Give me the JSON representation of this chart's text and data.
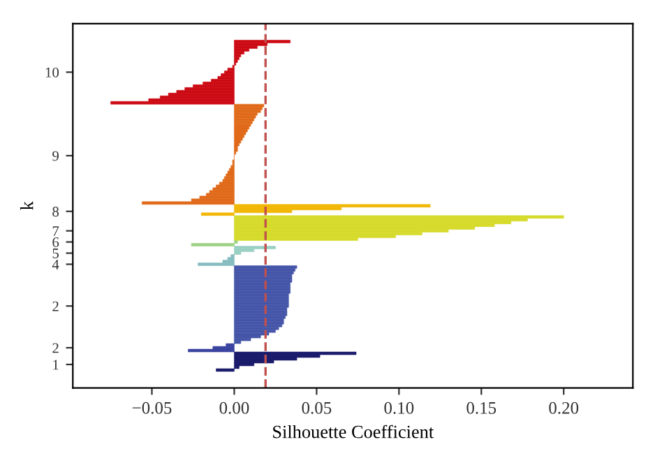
{
  "chart_data": {
    "type": "bar",
    "orientation": "horizontal",
    "xlabel": "Silhouette Coefficient",
    "ylabel": "k",
    "xlim": [
      -0.098,
      0.242
    ],
    "xticks": [
      {
        "value": -0.05,
        "label": "−0.05"
      },
      {
        "value": 0,
        "label": "0.00"
      },
      {
        "value": 0.05,
        "label": "0.05"
      },
      {
        "value": 0.1,
        "label": "0.10"
      },
      {
        "value": 0.15,
        "label": "0.15"
      },
      {
        "value": 0.2,
        "label": "0.20"
      }
    ],
    "categories": [
      null,
      null,
      null,
      null,
      null,
      null,
      null,
      null,
      null,
      null,
      null,
      "10",
      null,
      null,
      null,
      null,
      null,
      null,
      null,
      null,
      null,
      null,
      null,
      null,
      null,
      null,
      null,
      null,
      null,
      null,
      null,
      null,
      null,
      null,
      null,
      null,
      null,
      null,
      null,
      null,
      null,
      "9",
      null,
      null,
      null,
      null,
      null,
      null,
      null,
      null,
      null,
      null,
      null,
      null,
      null,
      null,
      null,
      null,
      null,
      null,
      null,
      "8",
      null,
      null,
      null,
      null,
      null,
      null,
      "7",
      null,
      null,
      null,
      "6",
      null,
      null,
      null,
      "5",
      null,
      null,
      null,
      "4",
      null,
      null,
      null,
      null,
      null,
      null,
      null,
      null,
      null,
      null,
      null,
      null,
      null,
      null,
      "2",
      null,
      null,
      null,
      null,
      null,
      null,
      null,
      null,
      null,
      null,
      null,
      null,
      null,
      null,
      "2",
      null,
      null,
      null,
      null,
      null,
      "1",
      null,
      null
    ],
    "values": [
      0.034,
      0.02,
      0.014,
      0.009,
      0.006,
      0.004,
      0.003,
      0.002,
      0.001,
      -0.001,
      -0.004,
      -0.006,
      -0.008,
      -0.01,
      -0.014,
      -0.019,
      -0.025,
      -0.03,
      -0.035,
      -0.04,
      -0.045,
      -0.052,
      -0.075,
      0.018,
      0.017,
      0.016,
      0.014,
      0.013,
      0.012,
      0.011,
      0.01,
      0.009,
      0.008,
      0.007,
      0.006,
      0.005,
      0.004,
      0.003,
      0.002,
      0.002,
      0.001,
      0,
      0,
      -0.001,
      -0.001,
      -0.002,
      -0.003,
      -0.004,
      -0.005,
      -0.006,
      -0.007,
      -0.009,
      -0.011,
      -0.013,
      -0.015,
      -0.017,
      -0.021,
      -0.026,
      -0.056,
      0.119,
      0.065,
      0.035,
      -0.02,
      0.2,
      0.178,
      0.168,
      0.158,
      0.146,
      0.13,
      0.114,
      0.098,
      0.075,
      0.002,
      -0.026,
      0.025,
      0.012,
      0.004,
      -0.002,
      -0.004,
      -0.007,
      -0.022,
      0.038,
      0.037,
      0.036,
      0.035,
      0.035,
      0.035,
      0.034,
      0.034,
      0.034,
      0.034,
      0.033,
      0.033,
      0.033,
      0.033,
      0.033,
      0.032,
      0.032,
      0.032,
      0.031,
      0.03,
      0.03,
      0.029,
      0.027,
      0.025,
      0.021,
      0.016,
      0.01,
      0.004,
      -0.005,
      -0.013,
      -0.028,
      0.074,
      0.052,
      0.038,
      0.024,
      0.012,
      0.003,
      -0.011
    ],
    "colors": [
      "#cc0a14",
      "#cc0a14",
      "#cc0a14",
      "#cc0a14",
      "#cc0a14",
      "#cc0a14",
      "#cc0a14",
      "#cc0a14",
      "#cc0a14",
      "#cc0a14",
      "#cc0a14",
      "#cc0a14",
      "#cc0a14",
      "#cc0a14",
      "#cc0a14",
      "#cc0a14",
      "#cc0a14",
      "#cc0a14",
      "#cc0a14",
      "#cc0a14",
      "#cc0a14",
      "#cc0a14",
      "#cc0a14",
      "#e06a1a",
      "#e06a1a",
      "#e06a1a",
      "#e06a1a",
      "#e06a1a",
      "#e06a1a",
      "#e06a1a",
      "#e06a1a",
      "#e06a1a",
      "#e06a1a",
      "#e06a1a",
      "#e06a1a",
      "#e06a1a",
      "#e06a1a",
      "#e06a1a",
      "#e06a1a",
      "#e06a1a",
      "#e06a1a",
      "#e06a1a",
      "#e06a1a",
      "#e06a1a",
      "#e06a1a",
      "#e06a1a",
      "#e06a1a",
      "#e06a1a",
      "#e06a1a",
      "#e06a1a",
      "#e06a1a",
      "#e06a1a",
      "#e06a1a",
      "#e06a1a",
      "#e06a1a",
      "#e06a1a",
      "#e06a1a",
      "#e06a1a",
      "#e06a1a",
      "#f2b705",
      "#f2b705",
      "#f2b705",
      "#f2b705",
      "#d6da2a",
      "#d6da2a",
      "#d6da2a",
      "#d6da2a",
      "#d6da2a",
      "#d6da2a",
      "#d6da2a",
      "#d6da2a",
      "#d6da2a",
      "#9fd184",
      "#9fd184",
      "#9ad0c4",
      "#9ad0c4",
      "#9ad0c4",
      "#86bcc0",
      "#86bcc0",
      "#86bcc0",
      "#86bcc0",
      "#4555a8",
      "#4555a8",
      "#4555a8",
      "#4555a8",
      "#4555a8",
      "#4555a8",
      "#4555a8",
      "#4555a8",
      "#4555a8",
      "#4555a8",
      "#4555a8",
      "#4555a8",
      "#4555a8",
      "#4555a8",
      "#4555a8",
      "#4555a8",
      "#4555a8",
      "#4555a8",
      "#4555a8",
      "#4555a8",
      "#4555a8",
      "#4555a8",
      "#4555a8",
      "#4555a8",
      "#4555a8",
      "#4555a8",
      "#4555a8",
      "#4555a8",
      "#3a44a0",
      "#3a44a0",
      "#3a44a0",
      "#1c1c6c",
      "#1c1c6c",
      "#1c1c6c",
      "#1c1c6c",
      "#1c1c6c",
      "#1c1c6c",
      "#1c1c6c"
    ],
    "ref_lines": [
      {
        "axis": "x",
        "value": 0.019,
        "color": "#c0504d",
        "line_style": "dashed"
      }
    ]
  }
}
